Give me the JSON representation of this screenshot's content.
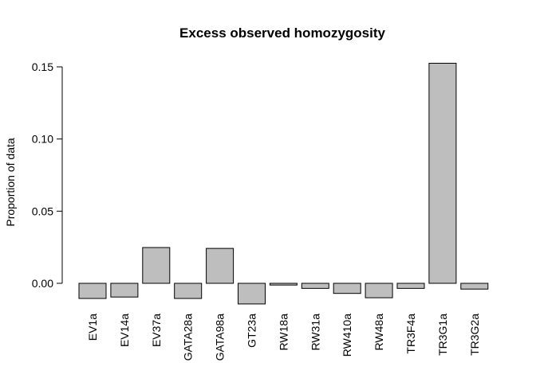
{
  "chart_data": {
    "type": "bar",
    "title": "Excess observed homozygosity",
    "xlabel": "",
    "ylabel": "Proportion of data",
    "categories": [
      "EV1a",
      "EV14a",
      "EV37a",
      "GATA28a",
      "GATA98a",
      "GT23a",
      "RW18a",
      "RW31a",
      "RW410a",
      "RW48a",
      "TR3F4a",
      "TR3G1a",
      "TR3G2a"
    ],
    "values": [
      -0.0105,
      -0.0095,
      0.0248,
      -0.0105,
      0.0242,
      -0.0143,
      -0.0012,
      -0.0035,
      -0.007,
      -0.01,
      -0.0035,
      0.1525,
      -0.004
    ],
    "ylim": [
      -0.015,
      0.153
    ],
    "yticks": [
      0.0,
      0.05,
      0.1,
      0.15
    ],
    "ytick_labels": [
      "0.00",
      "0.05",
      "0.10",
      "0.15"
    ],
    "bar_color": "#bebebe",
    "grid": false,
    "legend": "none"
  }
}
